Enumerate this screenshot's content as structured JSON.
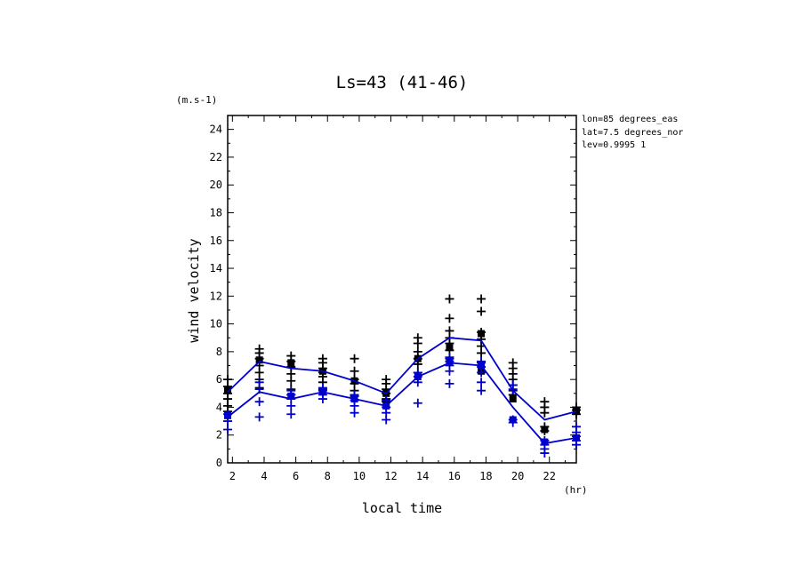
{
  "chart_data": {
    "type": "scatter",
    "title": "Ls=43 (41-46)",
    "xlabel": "local time",
    "ylabel": "wind velocity",
    "x_unit": "(hr)",
    "y_unit": "(m.s-1)",
    "annotations": [
      "lon=85 degrees_eas",
      "lat=7.5 degrees_nor",
      "lev=0.9995 1"
    ],
    "xlim": [
      1.7,
      23.7
    ],
    "ylim": [
      0,
      25
    ],
    "x_ticks": [
      2,
      4,
      6,
      8,
      10,
      12,
      14,
      16,
      18,
      20,
      22
    ],
    "y_ticks": [
      0,
      2,
      4,
      6,
      8,
      10,
      12,
      14,
      16,
      18,
      20,
      22,
      24
    ],
    "x": [
      1.7,
      3.7,
      5.7,
      7.7,
      9.7,
      11.7,
      13.7,
      15.7,
      17.7,
      19.7,
      21.7,
      23.7
    ],
    "lines": [
      {
        "color": "#0000cc",
        "values": [
          5.1,
          7.3,
          6.8,
          6.6,
          5.9,
          5.0,
          7.5,
          9.0,
          8.8,
          5.2,
          3.1,
          3.7
        ]
      },
      {
        "color": "#0000cc",
        "values": [
          3.3,
          5.1,
          4.6,
          5.1,
          4.6,
          4.1,
          6.2,
          7.2,
          7.0,
          4.0,
          1.4,
          1.8
        ]
      }
    ],
    "series": [
      {
        "color": "#000000",
        "marker": "plus",
        "points": [
          [
            1.7,
            6.0
          ],
          [
            1.7,
            5.5
          ],
          [
            1.7,
            5.0
          ],
          [
            1.7,
            4.6
          ],
          [
            1.7,
            4.1
          ],
          [
            1.7,
            3.7
          ],
          [
            3.7,
            8.2
          ],
          [
            3.7,
            7.9
          ],
          [
            3.7,
            7.5
          ],
          [
            3.7,
            7.0
          ],
          [
            3.7,
            6.5
          ],
          [
            3.7,
            6.0
          ],
          [
            3.7,
            5.4
          ],
          [
            5.7,
            7.7
          ],
          [
            5.7,
            7.3
          ],
          [
            5.7,
            6.9
          ],
          [
            5.7,
            6.4
          ],
          [
            5.7,
            5.9
          ],
          [
            5.7,
            5.3
          ],
          [
            5.7,
            4.9
          ],
          [
            7.7,
            7.5
          ],
          [
            7.7,
            7.2
          ],
          [
            7.7,
            6.8
          ],
          [
            7.7,
            6.5
          ],
          [
            7.7,
            6.2
          ],
          [
            7.7,
            5.8
          ],
          [
            7.7,
            5.3
          ],
          [
            9.7,
            7.5
          ],
          [
            9.7,
            6.6
          ],
          [
            9.7,
            6.0
          ],
          [
            9.7,
            5.7
          ],
          [
            9.7,
            5.2
          ],
          [
            9.7,
            4.8
          ],
          [
            11.7,
            6.0
          ],
          [
            11.7,
            5.7
          ],
          [
            11.7,
            5.3
          ],
          [
            11.7,
            5.0
          ],
          [
            11.7,
            4.6
          ],
          [
            11.7,
            4.4
          ],
          [
            13.7,
            9.0
          ],
          [
            13.7,
            8.6
          ],
          [
            13.7,
            8.0
          ],
          [
            13.7,
            7.5
          ],
          [
            13.7,
            7.1
          ],
          [
            13.7,
            6.5
          ],
          [
            15.7,
            11.8
          ],
          [
            15.7,
            10.4
          ],
          [
            15.7,
            9.5
          ],
          [
            15.7,
            9.0
          ],
          [
            15.7,
            8.6
          ],
          [
            15.7,
            8.1
          ],
          [
            15.7,
            7.5
          ],
          [
            17.7,
            11.8
          ],
          [
            17.7,
            10.9
          ],
          [
            17.7,
            9.4
          ],
          [
            17.7,
            8.9
          ],
          [
            17.7,
            8.4
          ],
          [
            17.7,
            7.9
          ],
          [
            17.7,
            7.2
          ],
          [
            19.7,
            7.2
          ],
          [
            19.7,
            6.8
          ],
          [
            19.7,
            6.4
          ],
          [
            19.7,
            6.0
          ],
          [
            19.7,
            5.6
          ],
          [
            19.7,
            5.2
          ],
          [
            19.7,
            4.9
          ],
          [
            21.7,
            4.4
          ],
          [
            21.7,
            4.0
          ],
          [
            21.7,
            3.6
          ],
          [
            21.7,
            2.6
          ],
          [
            21.7,
            2.3
          ],
          [
            23.7,
            4.0
          ],
          [
            23.7,
            3.8
          ],
          [
            23.7,
            3.5
          ]
        ],
        "squares": [
          [
            1.7,
            5.2
          ],
          [
            3.7,
            7.4
          ],
          [
            5.7,
            7.2
          ],
          [
            7.7,
            6.6
          ],
          [
            9.7,
            5.9
          ],
          [
            11.7,
            5.0
          ],
          [
            13.7,
            7.5
          ],
          [
            15.7,
            8.3
          ],
          [
            17.7,
            9.3
          ],
          [
            17.7,
            6.6
          ],
          [
            19.7,
            4.6
          ],
          [
            21.7,
            2.4
          ],
          [
            23.7,
            3.7
          ]
        ]
      },
      {
        "color": "#0000cc",
        "marker": "plus",
        "points": [
          [
            1.7,
            3.5
          ],
          [
            1.7,
            3.0
          ],
          [
            1.7,
            2.4
          ],
          [
            3.7,
            5.8
          ],
          [
            3.7,
            5.3
          ],
          [
            3.7,
            4.4
          ],
          [
            3.7,
            3.3
          ],
          [
            5.7,
            5.2
          ],
          [
            5.7,
            4.9
          ],
          [
            5.7,
            4.6
          ],
          [
            5.7,
            4.1
          ],
          [
            5.7,
            3.5
          ],
          [
            7.7,
            5.4
          ],
          [
            7.7,
            5.2
          ],
          [
            7.7,
            4.9
          ],
          [
            7.7,
            4.6
          ],
          [
            9.7,
            4.9
          ],
          [
            9.7,
            4.5
          ],
          [
            9.7,
            4.1
          ],
          [
            9.7,
            3.6
          ],
          [
            11.7,
            4.5
          ],
          [
            11.7,
            4.0
          ],
          [
            11.7,
            3.6
          ],
          [
            11.7,
            3.1
          ],
          [
            13.7,
            6.5
          ],
          [
            13.7,
            6.2
          ],
          [
            13.7,
            5.8
          ],
          [
            13.7,
            4.3
          ],
          [
            15.7,
            7.6
          ],
          [
            15.7,
            7.3
          ],
          [
            15.7,
            7.0
          ],
          [
            15.7,
            6.6
          ],
          [
            15.7,
            5.7
          ],
          [
            17.7,
            7.3
          ],
          [
            17.7,
            6.9
          ],
          [
            17.7,
            6.5
          ],
          [
            17.7,
            5.8
          ],
          [
            17.7,
            5.2
          ],
          [
            19.7,
            5.6
          ],
          [
            19.7,
            5.3
          ],
          [
            19.7,
            3.1
          ],
          [
            19.7,
            2.9
          ],
          [
            21.7,
            1.6
          ],
          [
            21.7,
            1.3
          ],
          [
            21.7,
            1.0
          ],
          [
            21.7,
            0.7
          ],
          [
            23.7,
            2.6
          ],
          [
            23.7,
            2.2
          ],
          [
            23.7,
            1.9
          ],
          [
            23.7,
            1.6
          ],
          [
            23.7,
            1.3
          ]
        ],
        "squares": [
          [
            1.7,
            3.4
          ],
          [
            5.7,
            4.8
          ],
          [
            7.7,
            5.1
          ],
          [
            9.7,
            4.6
          ],
          [
            11.7,
            4.1
          ],
          [
            13.7,
            6.2
          ],
          [
            15.7,
            7.3
          ],
          [
            17.7,
            7.0
          ],
          [
            19.7,
            3.1
          ],
          [
            21.7,
            1.5
          ],
          [
            23.7,
            1.8
          ]
        ]
      }
    ]
  }
}
